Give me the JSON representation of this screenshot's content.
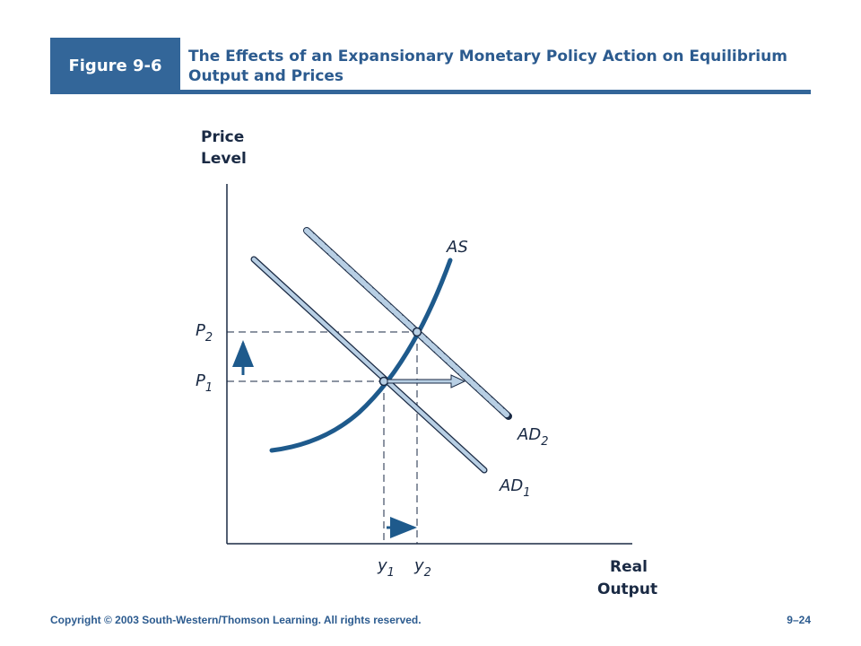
{
  "header": {
    "figure_label": "Figure 9-6",
    "title": "The Effects of an Expansionary Monetary Policy Action on Equilibrium Output and Prices"
  },
  "axes": {
    "y_title_line1": "Price",
    "y_title_line2": "Level",
    "x_title_line1": "Real",
    "x_title_line2": "Output"
  },
  "labels": {
    "as": "AS",
    "ad1": "AD",
    "ad1_sub": "1",
    "ad2": "AD",
    "ad2_sub": "2",
    "p1": "P",
    "p1_sub": "1",
    "p2": "P",
    "p2_sub": "2",
    "y1": "y",
    "y1_sub": "1",
    "y2": "y",
    "y2_sub": "2"
  },
  "footer": {
    "copyright": "Copyright © 2003 South-Western/Thomson Learning. All rights reserved.",
    "page": "9–24"
  },
  "colors": {
    "brand": "#336699",
    "curve_dark": "#1e5a8c",
    "curve_light": "#b8cfe4",
    "axis": "#1a2a44"
  }
}
